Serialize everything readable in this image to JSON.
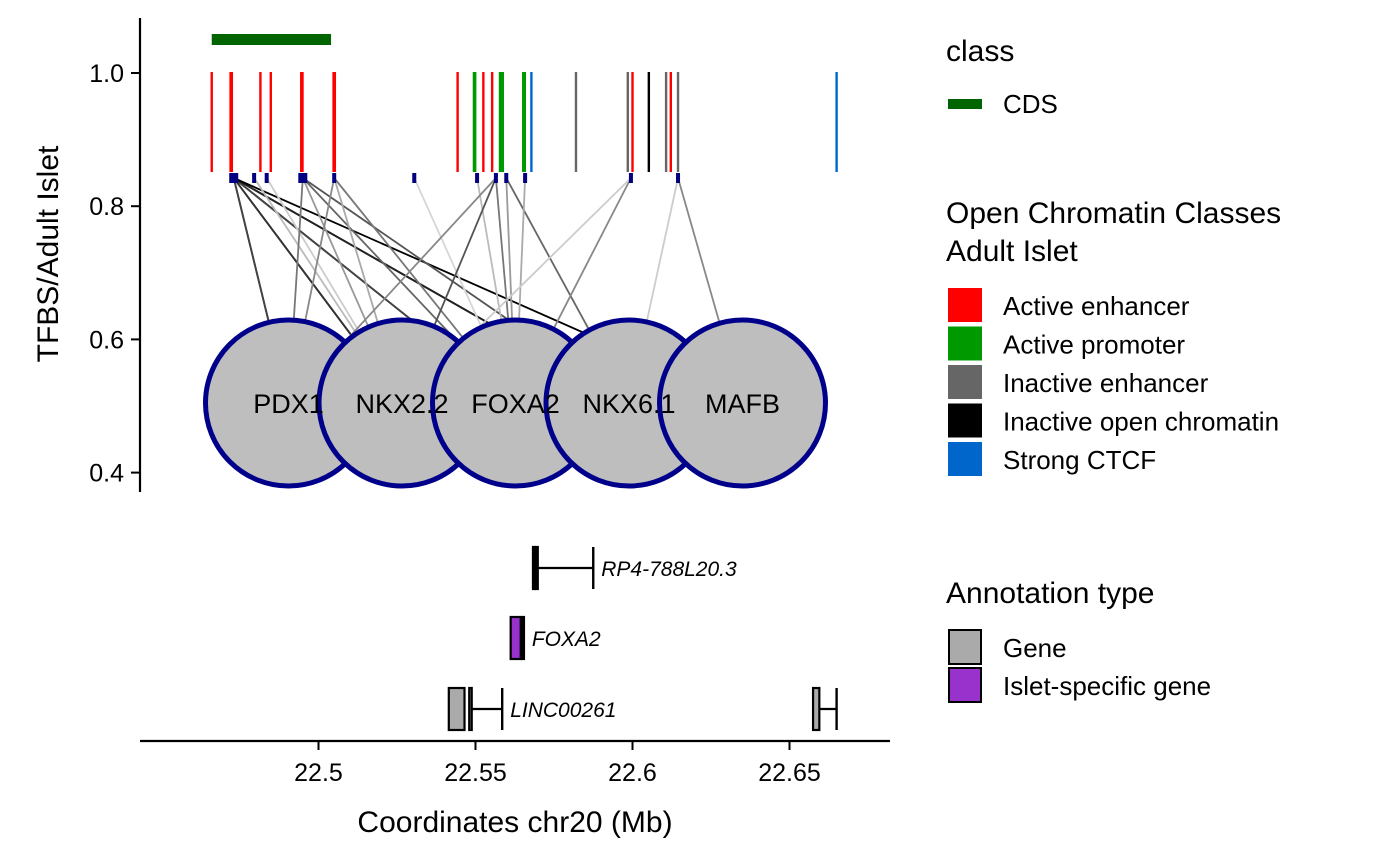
{
  "chart_data": {
    "type": "network",
    "ylabel": "TFBS/Adult Islet",
    "xlabel": "Coordinates chr20 (Mb)",
    "ylim": [
      0.38,
      1.08
    ],
    "xlim": [
      22.45,
      22.68
    ],
    "y_ticks": [
      "0.4",
      "0.6",
      "0.8",
      "1.0"
    ],
    "x_ticks": [
      "22.5",
      "22.55",
      "22.6",
      "22.65"
    ],
    "colors": {
      "cds": "#006400",
      "Active enhancer": "#ff0000",
      "Active promoter": "#009900",
      "Inactive enhancer": "#666666",
      "Inactive open chromatin": "#000000",
      "Strong CTCF": "#0066cc",
      "site": "#000080",
      "tf_fill": "#bebebe",
      "tf_border": "#00008b",
      "gene": "#aaaaaa",
      "islet_gene": "#9932cc"
    },
    "cds": [
      {
        "start": 22.466,
        "end": 22.504
      }
    ],
    "chromatin_marks": [
      {
        "x": 22.466,
        "class": "Active enhancer"
      },
      {
        "x": 22.472,
        "class": "Active enhancer"
      },
      {
        "x": 22.4724,
        "class": "Active enhancer"
      },
      {
        "x": 22.4815,
        "class": "Active enhancer"
      },
      {
        "x": 22.4848,
        "class": "Active enhancer"
      },
      {
        "x": 22.4945,
        "class": "Active enhancer"
      },
      {
        "x": 22.4949,
        "class": "Active enhancer"
      },
      {
        "x": 22.5048,
        "class": "Active enhancer"
      },
      {
        "x": 22.5052,
        "class": "Active enhancer"
      },
      {
        "x": 22.5443,
        "class": "Active enhancer"
      },
      {
        "x": 22.5495,
        "class": "Active promoter"
      },
      {
        "x": 22.5499,
        "class": "Active promoter"
      },
      {
        "x": 22.5525,
        "class": "Active enhancer"
      },
      {
        "x": 22.5553,
        "class": "Active enhancer"
      },
      {
        "x": 22.5578,
        "class": "Active promoter"
      },
      {
        "x": 22.5582,
        "class": "Active promoter"
      },
      {
        "x": 22.5587,
        "class": "Active promoter"
      },
      {
        "x": 22.5652,
        "class": "Active promoter"
      },
      {
        "x": 22.5657,
        "class": "Active promoter"
      },
      {
        "x": 22.5678,
        "class": "Strong CTCF"
      },
      {
        "x": 22.582,
        "class": "Inactive enhancer"
      },
      {
        "x": 22.5985,
        "class": "Inactive enhancer"
      },
      {
        "x": 22.6,
        "class": "Active enhancer"
      },
      {
        "x": 22.6052,
        "class": "Inactive open chromatin"
      },
      {
        "x": 22.6107,
        "class": "Inactive enhancer"
      },
      {
        "x": 22.6122,
        "class": "Active enhancer"
      },
      {
        "x": 22.6145,
        "class": "Inactive enhancer"
      },
      {
        "x": 22.665,
        "class": "Strong CTCF"
      }
    ],
    "tfbs_sites": [
      22.473,
      22.4795,
      22.4835,
      22.495,
      22.505,
      22.5305,
      22.5505,
      22.5565,
      22.5598,
      22.5658,
      22.5995,
      22.6145
    ],
    "transcription_factors": [
      "PDX1",
      "NKX2.2",
      "FOXA2",
      "NKX6.1",
      "MAFB"
    ],
    "edges": [
      {
        "site": 22.473,
        "tf": "PDX1",
        "shade": "#000000"
      },
      {
        "site": 22.473,
        "tf": "PDX1",
        "shade": "#444444"
      },
      {
        "site": 22.473,
        "tf": "NKX2.2",
        "shade": "#000000"
      },
      {
        "site": 22.473,
        "tf": "NKX2.2",
        "shade": "#333333"
      },
      {
        "site": 22.473,
        "tf": "FOXA2",
        "shade": "#000000"
      },
      {
        "site": 22.473,
        "tf": "FOXA2",
        "shade": "#444444"
      },
      {
        "site": 22.473,
        "tf": "NKX6.1",
        "shade": "#000000"
      },
      {
        "site": 22.473,
        "tf": "NKX6.1",
        "shade": "#222222"
      },
      {
        "site": 22.473,
        "tf": "MAFB",
        "shade": "#000000"
      },
      {
        "site": 22.4795,
        "tf": "NKX2.2",
        "shade": "#bbbbbb"
      },
      {
        "site": 22.4835,
        "tf": "NKX2.2",
        "shade": "#cccccc"
      },
      {
        "site": 22.495,
        "tf": "PDX1",
        "shade": "#777777"
      },
      {
        "site": 22.495,
        "tf": "NKX2.2",
        "shade": "#999999"
      },
      {
        "site": 22.495,
        "tf": "FOXA2",
        "shade": "#666666"
      },
      {
        "site": 22.495,
        "tf": "NKX6.1",
        "shade": "#555555"
      },
      {
        "site": 22.505,
        "tf": "PDX1",
        "shade": "#888888"
      },
      {
        "site": 22.505,
        "tf": "NKX2.2",
        "shade": "#aaaaaa"
      },
      {
        "site": 22.505,
        "tf": "FOXA2",
        "shade": "#777777"
      },
      {
        "site": 22.5305,
        "tf": "FOXA2",
        "shade": "#d6d6d6"
      },
      {
        "site": 22.5505,
        "tf": "FOXA2",
        "shade": "#bbbbbb"
      },
      {
        "site": 22.5565,
        "tf": "NKX2.2",
        "shade": "#555555"
      },
      {
        "site": 22.5565,
        "tf": "FOXA2",
        "shade": "#777777"
      },
      {
        "site": 22.5565,
        "tf": "PDX1",
        "shade": "#888888"
      },
      {
        "site": 22.5598,
        "tf": "FOXA2",
        "shade": "#999999"
      },
      {
        "site": 22.5598,
        "tf": "NKX6.1",
        "shade": "#666666"
      },
      {
        "site": 22.5658,
        "tf": "FOXA2",
        "shade": "#aaaaaa"
      },
      {
        "site": 22.5995,
        "tf": "FOXA2",
        "shade": "#888888"
      },
      {
        "site": 22.5995,
        "tf": "NKX2.2",
        "shade": "#cccccc"
      },
      {
        "site": 22.6145,
        "tf": "NKX6.1",
        "shade": "#cccccc"
      },
      {
        "site": 22.6145,
        "tf": "MAFB",
        "shade": "#888888"
      }
    ],
    "genes": [
      {
        "name": "RP4-788L20.3",
        "type": "Gene",
        "row": 0,
        "exons": [
          [
            22.5683,
            22.5689
          ],
          [
            22.5692,
            22.5698
          ]
        ],
        "line": [
          22.5698,
          22.5875
        ],
        "end_ticks": [
          22.5875
        ]
      },
      {
        "name": "FOXA2",
        "type": "Islet-specific gene",
        "row": 1,
        "exons": [
          [
            22.5612,
            22.5644
          ],
          [
            22.5648,
            22.5654
          ]
        ],
        "line": [],
        "end_ticks": []
      },
      {
        "name": "LINC00261",
        "type": "Gene",
        "row": 2,
        "exons": [
          [
            22.5415,
            22.5465
          ],
          [
            22.548,
            22.5488
          ]
        ],
        "line": [
          22.5488,
          22.5585
        ],
        "end_ticks": [
          22.5585
        ]
      },
      {
        "name": "",
        "type": "Gene",
        "row": 2,
        "exons": [
          [
            22.6575,
            22.6595
          ]
        ],
        "line": [
          22.6595,
          22.665
        ],
        "end_ticks": [
          22.665
        ]
      }
    ],
    "legends": {
      "class": {
        "title": "class",
        "items": [
          "CDS"
        ]
      },
      "chromatin": {
        "title": [
          "Open Chromatin Classes",
          "Adult Islet"
        ],
        "items": [
          "Active enhancer",
          "Active promoter",
          "Inactive enhancer",
          "Inactive open chromatin",
          "Strong CTCF"
        ]
      },
      "annotation": {
        "title": "Annotation type",
        "items": [
          "Gene",
          "Islet-specific gene"
        ]
      }
    }
  }
}
